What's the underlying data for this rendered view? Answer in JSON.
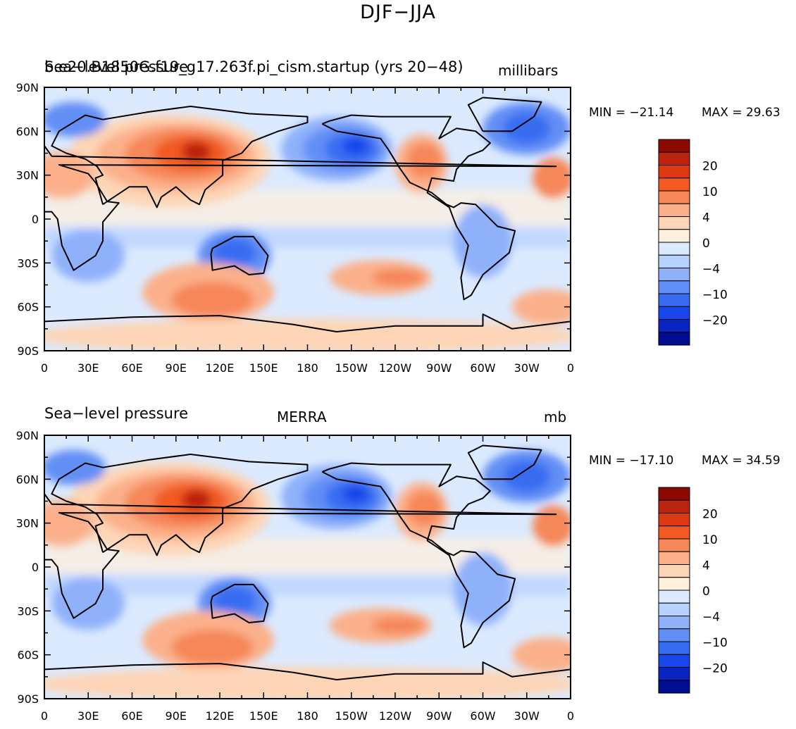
{
  "page_title": "DJF−JJA",
  "chart_data": [
    {
      "type": "heatmap",
      "left_title": "Sea−level pressure",
      "center_title": "b.e20.B1850G.f19_g17.263f.pi_cism.startup (yrs 20−48)",
      "units": "millibars",
      "min_label": "MIN = −21.14",
      "max_label": "MAX =   29.63",
      "x_ticks": [
        "0",
        "30E",
        "60E",
        "90E",
        "120E",
        "150E",
        "180",
        "150W",
        "120W",
        "90W",
        "60W",
        "30W",
        "0"
      ],
      "y_ticks": [
        "90N",
        "60N",
        "30N",
        "0",
        "30S",
        "60S",
        "90S"
      ],
      "colorbar_labels": [
        "20",
        "10",
        "4",
        "0",
        "−4",
        "−10",
        "−20"
      ],
      "xlim": [
        0,
        360
      ],
      "ylim": [
        -90,
        90
      ],
      "grid": false,
      "colorbar_position": "right"
    },
    {
      "type": "heatmap",
      "left_title": "Sea−level pressure",
      "center_title": "MERRA",
      "units": "mb",
      "min_label": "MIN = −17.10",
      "max_label": "MAX =   34.59",
      "x_ticks": [
        "0",
        "30E",
        "60E",
        "90E",
        "120E",
        "150E",
        "180",
        "150W",
        "120W",
        "90W",
        "60W",
        "30W",
        "0"
      ],
      "y_ticks": [
        "90N",
        "60N",
        "30N",
        "0",
        "30S",
        "60S",
        "90S"
      ],
      "colorbar_labels": [
        "20",
        "10",
        "4",
        "0",
        "−4",
        "−10",
        "−20"
      ],
      "xlim": [
        0,
        360
      ],
      "ylim": [
        -90,
        90
      ],
      "grid": false,
      "colorbar_position": "right"
    }
  ],
  "colorbar_colors": [
    "#8c0a00",
    "#bd2410",
    "#dc3a10",
    "#f25a22",
    "#f58758",
    "#fbb08a",
    "#fdd5b6",
    "#fff0dc",
    "#dbeaff",
    "#b7d2ff",
    "#8fb1fa",
    "#628ff5",
    "#386df2",
    "#1747ea",
    "#0a24c2",
    "#000d8f"
  ]
}
